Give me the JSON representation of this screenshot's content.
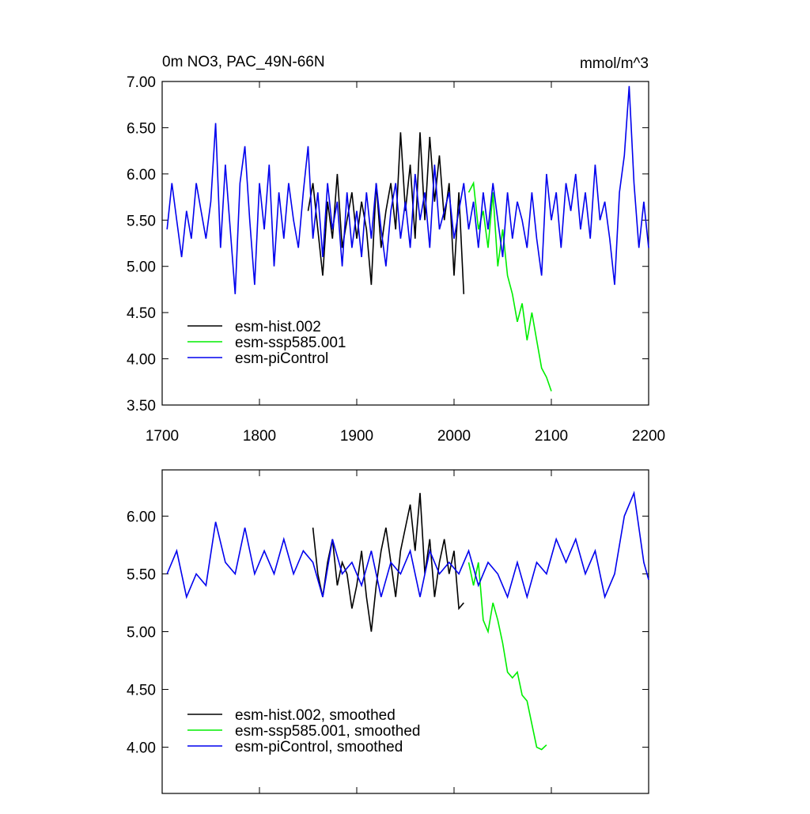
{
  "chart_data": [
    {
      "type": "line",
      "title": "0m NO3, PAC_49N-66N",
      "units": "mmol/m^3",
      "xlim": [
        1700,
        2200
      ],
      "xticks": [
        1700,
        1800,
        1900,
        2000,
        2100,
        2200
      ],
      "xtick_labels": true,
      "ylim": [
        3.5,
        7.0
      ],
      "yticks": [
        {
          "value": 3.5,
          "label": "3.50"
        },
        {
          "value": 4.0,
          "label": "4.00"
        },
        {
          "value": 4.5,
          "label": "4.50"
        },
        {
          "value": 5.0,
          "label": "5.00"
        },
        {
          "value": 5.5,
          "label": "5.50"
        },
        {
          "value": 6.0,
          "label": "6.00"
        },
        {
          "value": 6.5,
          "label": "6.50"
        },
        {
          "value": 7.0,
          "label": "7.00"
        }
      ],
      "legend": "lower left",
      "series": [
        {
          "name": "esm-hist.002",
          "color": "#000000",
          "x": [
            1850,
            1855,
            1860,
            1865,
            1870,
            1875,
            1880,
            1885,
            1890,
            1895,
            1900,
            1905,
            1910,
            1915,
            1920,
            1925,
            1930,
            1935,
            1940,
            1945,
            1950,
            1955,
            1960,
            1965,
            1970,
            1975,
            1980,
            1985,
            1990,
            1995,
            2000,
            2005,
            2010
          ],
          "values": [
            5.6,
            5.9,
            5.4,
            4.9,
            5.7,
            5.3,
            6.0,
            5.2,
            5.5,
            5.8,
            5.3,
            5.7,
            5.4,
            4.8,
            5.9,
            5.2,
            5.6,
            5.9,
            5.4,
            6.45,
            5.6,
            6.1,
            5.3,
            6.45,
            5.5,
            6.4,
            5.7,
            6.2,
            5.5,
            5.9,
            4.9,
            5.8,
            4.7
          ]
        },
        {
          "name": "esm-ssp585.001",
          "color": "#00ee00",
          "x": [
            2015,
            2020,
            2025,
            2030,
            2035,
            2040,
            2045,
            2050,
            2055,
            2060,
            2065,
            2070,
            2075,
            2080,
            2085,
            2090,
            2095,
            2100
          ],
          "values": [
            5.8,
            5.9,
            5.4,
            5.6,
            5.2,
            5.8,
            5.0,
            5.4,
            4.9,
            4.7,
            4.4,
            4.6,
            4.2,
            4.5,
            4.2,
            3.9,
            3.8,
            3.65
          ]
        },
        {
          "name": "esm-piControl",
          "color": "#0000ee",
          "x": [
            1705,
            1710,
            1715,
            1720,
            1725,
            1730,
            1735,
            1740,
            1745,
            1750,
            1755,
            1760,
            1765,
            1770,
            1775,
            1780,
            1785,
            1790,
            1795,
            1800,
            1805,
            1810,
            1815,
            1820,
            1825,
            1830,
            1835,
            1840,
            1845,
            1850,
            1855,
            1860,
            1865,
            1870,
            1875,
            1880,
            1885,
            1890,
            1895,
            1900,
            1905,
            1910,
            1915,
            1920,
            1925,
            1930,
            1935,
            1940,
            1945,
            1950,
            1955,
            1960,
            1965,
            1970,
            1975,
            1980,
            1985,
            1990,
            1995,
            2000,
            2005,
            2010,
            2015,
            2020,
            2025,
            2030,
            2035,
            2040,
            2045,
            2050,
            2055,
            2060,
            2065,
            2070,
            2075,
            2080,
            2085,
            2090,
            2095,
            2100,
            2105,
            2110,
            2115,
            2120,
            2125,
            2130,
            2135,
            2140,
            2145,
            2150,
            2155,
            2160,
            2165,
            2170,
            2175,
            2180,
            2185,
            2190,
            2195,
            2200
          ],
          "values": [
            5.4,
            5.9,
            5.5,
            5.1,
            5.6,
            5.3,
            5.9,
            5.6,
            5.3,
            5.7,
            6.55,
            5.2,
            6.1,
            5.4,
            4.7,
            5.9,
            6.3,
            5.5,
            4.8,
            5.9,
            5.4,
            6.1,
            5.0,
            5.8,
            5.3,
            5.9,
            5.5,
            5.2,
            5.8,
            6.3,
            5.3,
            5.8,
            5.1,
            5.9,
            5.4,
            5.7,
            5.0,
            5.8,
            5.2,
            5.6,
            5.1,
            5.8,
            5.3,
            5.9,
            5.4,
            5.0,
            5.6,
            5.9,
            5.3,
            5.7,
            5.2,
            6.0,
            5.5,
            5.8,
            5.2,
            6.1,
            5.4,
            5.6,
            5.8,
            5.3,
            5.6,
            5.9,
            5.4,
            5.7,
            5.2,
            5.8,
            5.4,
            5.9,
            5.5,
            5.1,
            5.8,
            5.3,
            5.7,
            5.5,
            5.2,
            5.8,
            5.3,
            4.9,
            6.0,
            5.5,
            5.8,
            5.2,
            5.9,
            5.6,
            6.0,
            5.4,
            5.8,
            5.3,
            6.1,
            5.5,
            5.7,
            5.3,
            4.8,
            5.8,
            6.2,
            6.95,
            5.9,
            5.2,
            5.7,
            5.2
          ]
        }
      ]
    },
    {
      "type": "line",
      "xlim": [
        1700,
        2200
      ],
      "xticks": [
        1700,
        1800,
        1900,
        2000,
        2100,
        2200
      ],
      "xtick_labels": false,
      "ylim": [
        3.6,
        6.4
      ],
      "yticks": [
        {
          "value": 4.0,
          "label": "4.00"
        },
        {
          "value": 4.5,
          "label": "4.50"
        },
        {
          "value": 5.0,
          "label": "5.00"
        },
        {
          "value": 5.5,
          "label": "5.50"
        },
        {
          "value": 6.0,
          "label": "6.00"
        }
      ],
      "legend": "lower left",
      "series": [
        {
          "name": "esm-hist.002, smoothed",
          "color": "#000000",
          "x": [
            1855,
            1860,
            1865,
            1870,
            1875,
            1880,
            1885,
            1890,
            1895,
            1900,
            1905,
            1910,
            1915,
            1920,
            1925,
            1930,
            1935,
            1940,
            1945,
            1950,
            1955,
            1960,
            1965,
            1970,
            1975,
            1980,
            1985,
            1990,
            1995,
            2000,
            2005,
            2010
          ],
          "values": [
            5.9,
            5.5,
            5.3,
            5.6,
            5.8,
            5.4,
            5.6,
            5.5,
            5.2,
            5.4,
            5.7,
            5.3,
            5.0,
            5.4,
            5.7,
            5.9,
            5.6,
            5.3,
            5.7,
            5.9,
            6.1,
            5.7,
            6.2,
            5.5,
            5.8,
            5.3,
            5.6,
            5.8,
            5.5,
            5.7,
            5.2,
            5.25
          ]
        },
        {
          "name": "esm-ssp585.001, smoothed",
          "color": "#00ee00",
          "x": [
            2015,
            2020,
            2025,
            2030,
            2035,
            2040,
            2045,
            2050,
            2055,
            2060,
            2065,
            2070,
            2075,
            2080,
            2085,
            2090,
            2095
          ],
          "values": [
            5.6,
            5.4,
            5.6,
            5.1,
            5.0,
            5.25,
            5.1,
            4.9,
            4.65,
            4.6,
            4.65,
            4.45,
            4.4,
            4.2,
            4.0,
            3.98,
            4.02
          ]
        },
        {
          "name": "esm-piControl, smoothed",
          "color": "#0000ee",
          "x": [
            1705,
            1715,
            1725,
            1735,
            1745,
            1755,
            1765,
            1775,
            1785,
            1795,
            1805,
            1815,
            1825,
            1835,
            1845,
            1855,
            1865,
            1875,
            1885,
            1895,
            1905,
            1915,
            1925,
            1935,
            1945,
            1955,
            1965,
            1975,
            1985,
            1995,
            2005,
            2015,
            2025,
            2035,
            2045,
            2055,
            2065,
            2075,
            2085,
            2095,
            2105,
            2115,
            2125,
            2135,
            2145,
            2155,
            2165,
            2175,
            2185,
            2195,
            2200
          ],
          "values": [
            5.5,
            5.7,
            5.3,
            5.5,
            5.4,
            5.95,
            5.6,
            5.5,
            5.9,
            5.5,
            5.7,
            5.5,
            5.8,
            5.5,
            5.7,
            5.6,
            5.3,
            5.8,
            5.5,
            5.6,
            5.4,
            5.7,
            5.3,
            5.6,
            5.5,
            5.7,
            5.3,
            5.7,
            5.5,
            5.6,
            5.5,
            5.7,
            5.4,
            5.6,
            5.5,
            5.3,
            5.6,
            5.3,
            5.6,
            5.5,
            5.8,
            5.6,
            5.8,
            5.5,
            5.7,
            5.3,
            5.5,
            6.0,
            6.2,
            5.6,
            5.45
          ]
        }
      ]
    }
  ]
}
